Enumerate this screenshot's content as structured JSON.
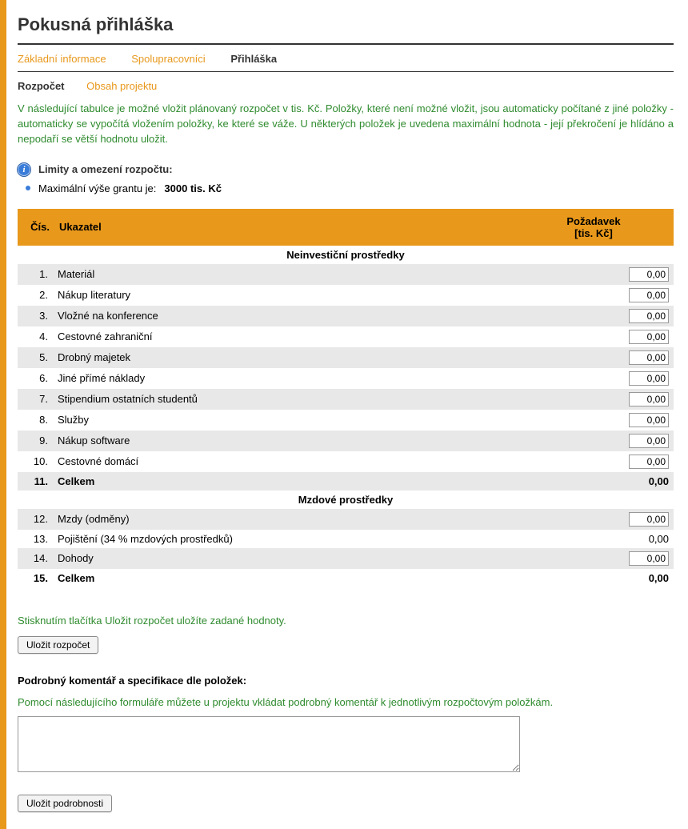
{
  "page_title": "Pokusná přihláška",
  "tabs": {
    "basic": "Základní informace",
    "coop": "Spolupracovníci",
    "app": "Přihláška"
  },
  "subtabs": {
    "budget": "Rozpočet",
    "content": "Obsah projektu"
  },
  "intro": "V následující tabulce je možné vložit plánovaný rozpočet v tis. Kč. Položky, které není možné vložit, jsou automaticky počítané z jiné položky - automaticky se vypočítá vložením položky, ke které se váže. U některých položek je uvedena maximální hodnota - její překročení je hlídáno a nepodaří se větší hodnotu uložit.",
  "limits": {
    "heading": "Limity a omezení rozpočtu:",
    "max_label": "Maximální výše grantu je:",
    "max_value": "3000 tis. Kč"
  },
  "table": {
    "col_num": "Čís.",
    "col_name": "Ukazatel",
    "col_val_line1": "Požadavek",
    "col_val_line2": "[tis. Kč]",
    "section1": "Neinvestiční prostředky",
    "section2": "Mzdové prostředky",
    "rows1": [
      {
        "n": "1.",
        "name": "Materiál",
        "v": "0,00",
        "input": true
      },
      {
        "n": "2.",
        "name": "Nákup literatury",
        "v": "0,00",
        "input": true
      },
      {
        "n": "3.",
        "name": "Vložné na konference",
        "v": "0,00",
        "input": true
      },
      {
        "n": "4.",
        "name": "Cestovné zahraniční",
        "v": "0,00",
        "input": true
      },
      {
        "n": "5.",
        "name": "Drobný majetek",
        "v": "0,00",
        "input": true
      },
      {
        "n": "6.",
        "name": "Jiné přímé náklady",
        "v": "0,00",
        "input": true
      },
      {
        "n": "7.",
        "name": "Stipendium ostatních studentů",
        "v": "0,00",
        "input": true
      },
      {
        "n": "8.",
        "name": "Služby",
        "v": "0,00",
        "input": true
      },
      {
        "n": "9.",
        "name": "Nákup software",
        "v": "0,00",
        "input": true
      },
      {
        "n": "10.",
        "name": "Cestovné domácí",
        "v": "0,00",
        "input": true
      },
      {
        "n": "11.",
        "name": "Celkem",
        "v": "0,00",
        "input": false,
        "bold": true
      }
    ],
    "rows2": [
      {
        "n": "12.",
        "name": "Mzdy (odměny)",
        "v": "0,00",
        "input": true
      },
      {
        "n": "13.",
        "name": "Pojištění (34 % mzdových prostředků)",
        "v": "0,00",
        "input": false
      },
      {
        "n": "14.",
        "name": "Dohody",
        "v": "0,00",
        "input": true
      },
      {
        "n": "15.",
        "name": "Celkem",
        "v": "0,00",
        "input": false,
        "bold": true
      }
    ]
  },
  "save_budget_hint": "Stisknutím tlačítka Uložit rozpočet uložíte zadané hodnoty.",
  "save_budget_btn": "Uložit rozpočet",
  "details_heading": "Podrobný komentář a specifikace dle položek:",
  "details_hint": "Pomocí následujícího formuláře můžete u projektu vkládat podrobný komentář k jednotlivým rozpočtovým položkám.",
  "details_value": "",
  "save_details_btn": "Uložit podrobnosti"
}
